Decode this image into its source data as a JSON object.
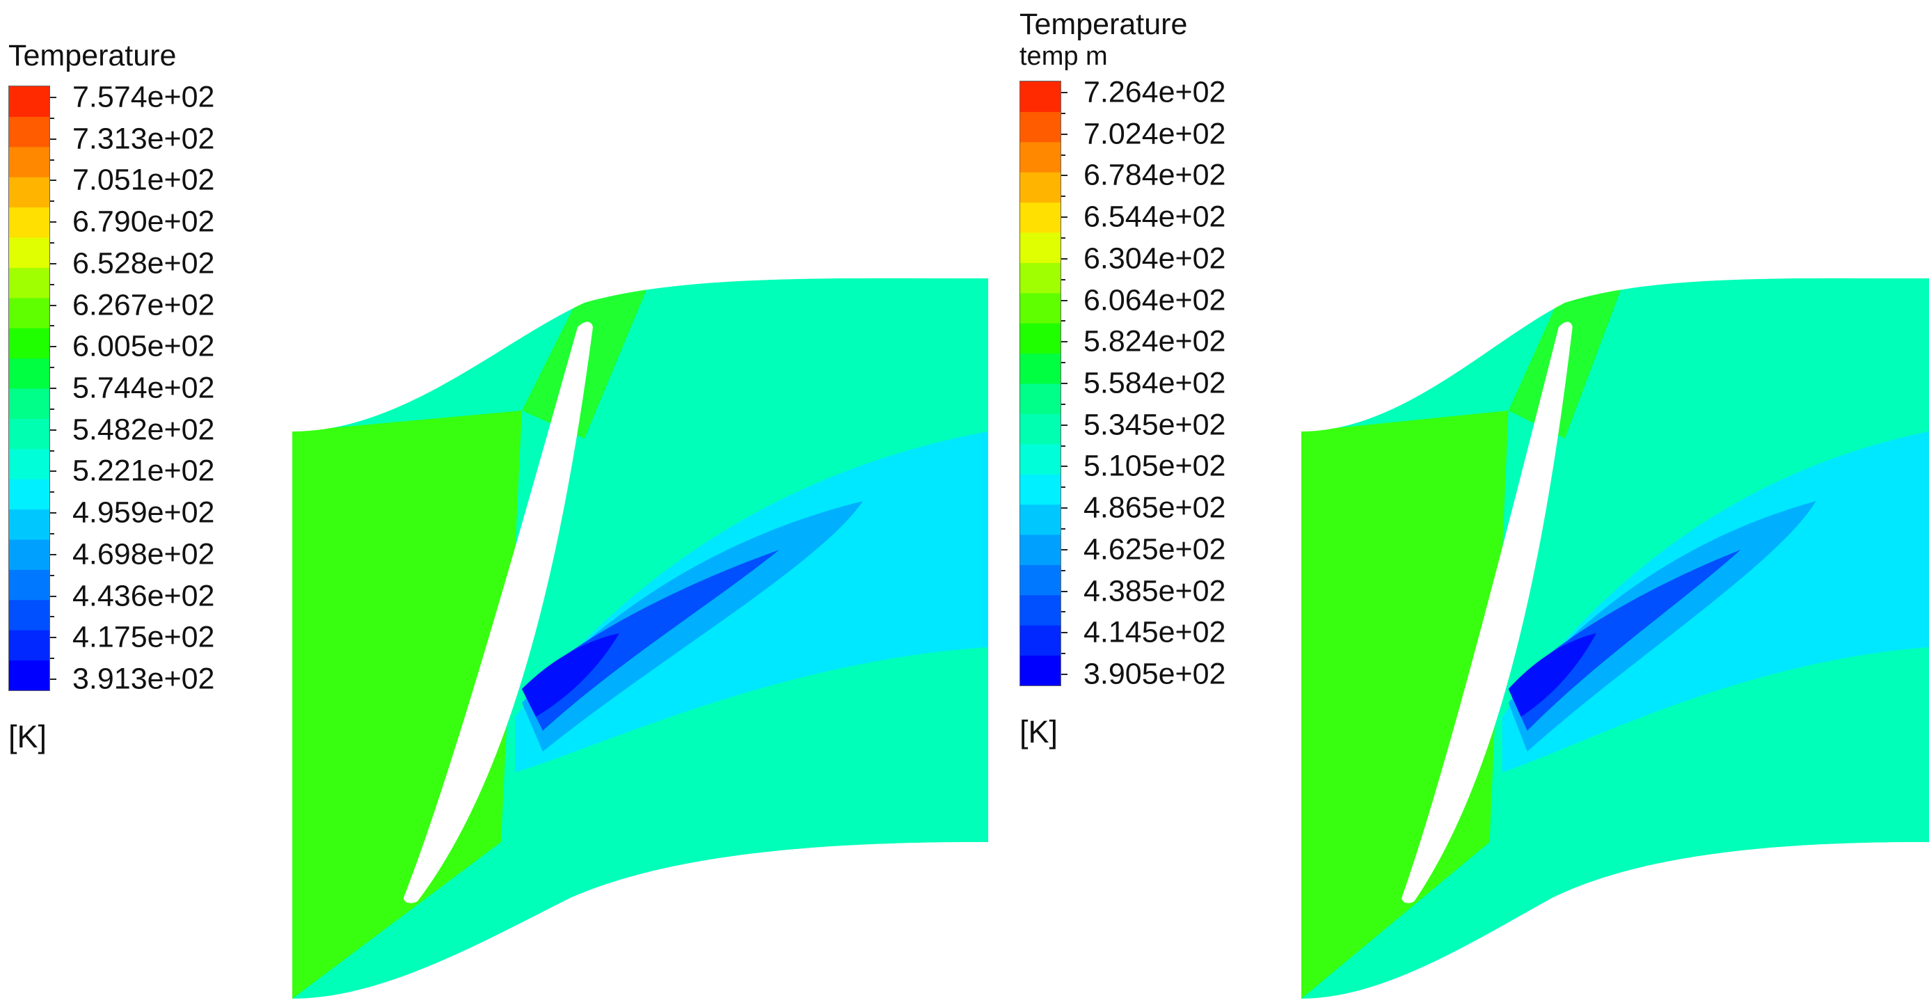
{
  "chart_data": [
    {
      "type": "heatmap",
      "title": "Temperature",
      "subtitle": "",
      "unit": "[K]",
      "colorbar_ticks": [
        "7.574e+02",
        "7.313e+02",
        "7.051e+02",
        "6.790e+02",
        "6.528e+02",
        "6.267e+02",
        "6.005e+02",
        "5.744e+02",
        "5.482e+02",
        "5.221e+02",
        "4.959e+02",
        "4.698e+02",
        "4.436e+02",
        "4.175e+02",
        "3.913e+02"
      ],
      "range": [
        391.3,
        757.4
      ]
    },
    {
      "type": "heatmap",
      "title": "Temperature",
      "subtitle": "temp m",
      "unit": "[K]",
      "colorbar_ticks": [
        "7.264e+02",
        "7.024e+02",
        "6.784e+02",
        "6.544e+02",
        "6.304e+02",
        "6.064e+02",
        "5.824e+02",
        "5.584e+02",
        "5.345e+02",
        "5.105e+02",
        "4.865e+02",
        "4.625e+02",
        "4.385e+02",
        "4.145e+02",
        "3.905e+02"
      ],
      "range": [
        390.5,
        726.4
      ]
    }
  ],
  "colormap": [
    "#0000ff",
    "#0028ff",
    "#0050ff",
    "#0078ff",
    "#00a0ff",
    "#00c8ff",
    "#00f0ff",
    "#00ffd8",
    "#00ffb0",
    "#00ff88",
    "#00ff40",
    "#20ff00",
    "#60ff00",
    "#a0ff00",
    "#e0ff00",
    "#ffe000",
    "#ffb400",
    "#ff8800",
    "#ff5c00",
    "#ff2a00"
  ]
}
